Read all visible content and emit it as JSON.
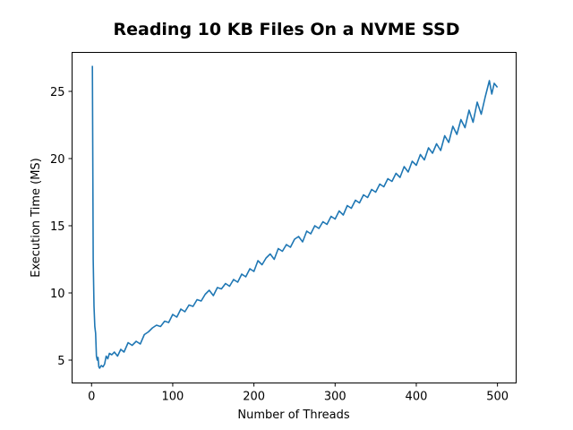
{
  "chart_data": {
    "type": "line",
    "title": "Reading 10 KB Files On a NVME SSD",
    "xlabel": "Number of Threads",
    "ylabel": "Execution Time (MS)",
    "xlim": [
      -24,
      523
    ],
    "ylim": [
      3.3,
      27.9
    ],
    "xticks": [
      0,
      100,
      200,
      300,
      400,
      500
    ],
    "yticks": [
      5,
      10,
      15,
      20,
      25
    ],
    "grid": false,
    "legend": null,
    "series": [
      {
        "name": "Execution Time",
        "color": "#1f77b4",
        "x": [
          1,
          2,
          3,
          4,
          5,
          6,
          7,
          8,
          9,
          10,
          12,
          14,
          16,
          18,
          20,
          22,
          25,
          28,
          32,
          36,
          40,
          45,
          50,
          55,
          60,
          65,
          70,
          75,
          80,
          85,
          90,
          95,
          100,
          105,
          110,
          115,
          120,
          125,
          130,
          135,
          140,
          145,
          150,
          155,
          160,
          165,
          170,
          175,
          180,
          185,
          190,
          195,
          200,
          205,
          210,
          215,
          220,
          225,
          230,
          235,
          240,
          245,
          250,
          255,
          260,
          265,
          270,
          275,
          280,
          285,
          290,
          295,
          300,
          305,
          310,
          315,
          320,
          325,
          330,
          335,
          340,
          345,
          350,
          355,
          360,
          365,
          370,
          375,
          380,
          385,
          390,
          395,
          400,
          405,
          410,
          415,
          420,
          425,
          430,
          435,
          440,
          445,
          450,
          455,
          460,
          465,
          470,
          475,
          480,
          485,
          490,
          493,
          496,
          500
        ],
        "values": [
          26.9,
          12.5,
          9.0,
          7.5,
          7.0,
          5.3,
          5.0,
          5.2,
          4.5,
          4.4,
          4.6,
          4.5,
          4.7,
          5.3,
          5.1,
          5.5,
          5.4,
          5.6,
          5.3,
          5.8,
          5.6,
          6.3,
          6.1,
          6.4,
          6.2,
          6.9,
          7.1,
          7.4,
          7.6,
          7.5,
          7.9,
          7.8,
          8.4,
          8.2,
          8.8,
          8.6,
          9.1,
          9.0,
          9.5,
          9.4,
          9.9,
          10.2,
          9.8,
          10.4,
          10.3,
          10.7,
          10.5,
          11.0,
          10.8,
          11.4,
          11.2,
          11.8,
          11.6,
          12.4,
          12.1,
          12.6,
          12.9,
          12.5,
          13.3,
          13.1,
          13.6,
          13.4,
          14.0,
          14.2,
          13.8,
          14.6,
          14.4,
          15.0,
          14.8,
          15.3,
          15.1,
          15.7,
          15.5,
          16.1,
          15.8,
          16.5,
          16.3,
          16.9,
          16.7,
          17.3,
          17.1,
          17.7,
          17.5,
          18.1,
          17.9,
          18.5,
          18.3,
          18.9,
          18.6,
          19.4,
          19.0,
          19.8,
          19.5,
          20.3,
          19.9,
          20.8,
          20.4,
          21.1,
          20.6,
          21.7,
          21.2,
          22.4,
          21.8,
          22.9,
          22.3,
          23.6,
          22.7,
          24.2,
          23.3,
          24.6,
          25.8,
          24.8,
          25.6,
          25.3
        ]
      }
    ]
  }
}
